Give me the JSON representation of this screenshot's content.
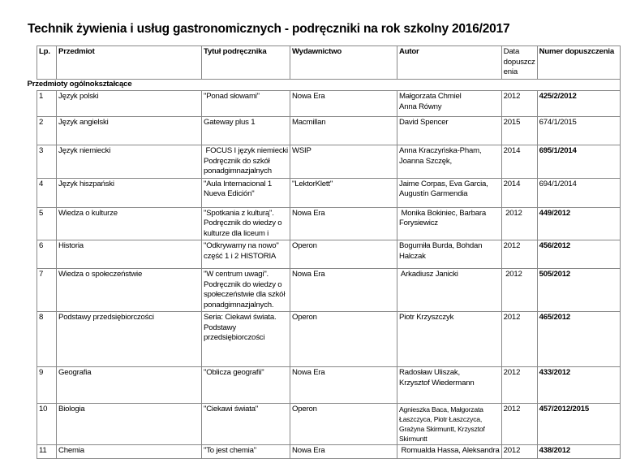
{
  "title": "Technik żywienia i usług gastronomicznych - podręczniki na rok szkolny 2016/2017",
  "headers": [
    "Lp.",
    "Przedmiot",
    "Tytuł podręcznika",
    "Wydawnictwo",
    "Autor",
    "Data\ndopuszcz\nenia",
    "Numer dopuszczenia"
  ],
  "section": "Przedmioty ogólnokształcące",
  "rows": [
    {
      "lp": "1",
      "subject": "Język polski",
      "title": "\"Ponad słowami\"",
      "publisher": "Nowa Era",
      "author": "Małgorzata Chmiel\nAnna Równy",
      "year": "2012",
      "number": "425/2/2012",
      "bold": true
    },
    {
      "lp": "2",
      "subject": "Język angielski",
      "title": "Gateway plus 1",
      "publisher": "Macmillan",
      "author": "David Spencer",
      "year": "2015",
      "number": "674/1/2015",
      "bold": false
    },
    {
      "lp": "3",
      "subject": "Język niemiecki",
      "title": " FOCUS I język niemiecki\nPodręcznik do szkół\nponadgimnazjalnych",
      "publisher": "WSIP",
      "author": "Anna Kraczyńska-Pham,\nJoanna Szczęk,",
      "year": "2014",
      "number": "695/1/2014",
      "bold": true
    },
    {
      "lp": "4",
      "subject": "Język hiszpański",
      "title": "\"Aula Internacional 1\nNueva Edición\"",
      "publisher": "\"LektorKlett\"",
      "author": "Jaime Corpas, Eva Garcia,\nAugustín Garmendia",
      "year": "2014",
      "number": "694/1/2014",
      "bold": false
    },
    {
      "lp": "5",
      "subject": "Wiedza o kulturze",
      "title": "\"Spotkania z kulturą\".\nPodręcznik do wiedzy o\nkulturze dla liceum i",
      "publisher": "Nowa Era",
      "author": " Monika Bokiniec, Barbara\nForysiewicz",
      "year": " 2012",
      "number": "449/2012",
      "bold": true
    },
    {
      "lp": "6",
      "subject": "Historia",
      "title": "\"Odkrywamy na nowo\"\nczęść 1 i 2 HISTORIA",
      "publisher": "Operon",
      "author": "Bogumiła Burda, Bohdan\nHalczak",
      "year": "2012",
      "number": "456/2012",
      "bold": true
    },
    {
      "lp": "7",
      "subject": "Wiedza o społeczeństwie",
      "title": "\"W centrum uwagi\".\nPodręcznik do wiedzy o\nspołeczeństwie dla szkół\nponadgimnazjalnych.",
      "publisher": "Nowa Era",
      "author": " Arkadiusz Janicki",
      "year": " 2012",
      "number": "505/2012",
      "bold": true
    },
    {
      "lp": "8",
      "subject": "Podstawy przedsiębiorczości",
      "title": "Seria: Ciekawi świata.\nPodstawy\nprzedsiębiorczości",
      "publisher": "Operon",
      "author": "Piotr Krzyszczyk",
      "year": "2012",
      "number": "465/2012",
      "bold": true
    },
    {
      "lp": "9",
      "subject": "Geografia",
      "title": "\"Oblicza geografii\"",
      "publisher": "Nowa Era",
      "author": "Radosław Uliszak,\nKrzysztof Wiedermann",
      "year": "2012",
      "number": "433/2012",
      "bold": true
    },
    {
      "lp": "10",
      "subject": "Biologia",
      "title": "\"Ciekawi świata\"",
      "publisher": "Operon",
      "author": "Agnieszka Baca, Małgorzata\nŁaszczyca, Piotr Łaszczyca,\nGrażyna Skirmuntt, Krzysztof\nSkirmuntt",
      "year": "2012",
      "number": "457/2012/2015",
      "bold": true
    },
    {
      "lp": "11",
      "subject": "Chemia",
      "title": "\"To jest chemia\"",
      "publisher": "Nowa Era",
      "author": " Romualda Hassa, Aleksandra",
      "year": "2012",
      "number": "438/2012",
      "bold": true
    }
  ]
}
